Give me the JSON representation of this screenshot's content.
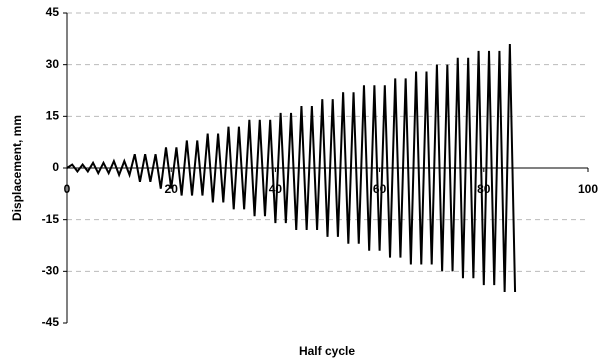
{
  "chart_data": {
    "type": "line",
    "x_label": "Half cycle",
    "y_label": "Displacement, mm",
    "x": [
      0,
      1,
      2,
      3,
      4,
      5,
      6,
      7,
      8,
      9,
      10,
      11,
      12,
      13,
      14,
      15,
      16,
      17,
      18,
      19,
      20,
      21,
      22,
      23,
      24,
      25,
      26,
      27,
      28,
      29,
      30,
      31,
      32,
      33,
      34,
      35,
      36,
      37,
      38,
      39,
      40,
      41,
      42,
      43,
      44,
      45,
      46,
      47,
      48,
      49,
      50,
      51,
      52,
      53,
      54,
      55,
      56,
      57,
      58,
      59,
      60,
      61,
      62,
      63,
      64,
      65,
      66,
      67,
      68,
      69,
      70,
      71,
      72,
      73,
      74,
      75,
      76,
      77,
      78,
      79,
      80,
      81,
      82,
      83,
      84,
      85,
      86
    ],
    "values": [
      0,
      1,
      -1,
      1,
      -1,
      1.5,
      -1.5,
      1.5,
      -1.5,
      2,
      -2,
      2,
      -2,
      4,
      -4,
      4,
      -4,
      4,
      -6,
      6,
      -6,
      6,
      -8,
      8,
      -8,
      8,
      -8,
      10,
      -10,
      10,
      -10,
      12,
      -12,
      12,
      -12,
      14,
      -14,
      14,
      -14,
      14,
      -16,
      16,
      -16,
      16,
      -18,
      18,
      -18,
      18,
      -18,
      20,
      -20,
      20,
      -20,
      22,
      -22,
      22,
      -22,
      24,
      -24,
      24,
      -24,
      24,
      -26,
      26,
      -26,
      26,
      -28,
      28,
      -28,
      28,
      -28,
      30,
      -30,
      30,
      -30,
      32,
      -32,
      32,
      -32,
      34,
      -34,
      34,
      -34,
      34,
      -36,
      36,
      -36
    ],
    "color": "#000000",
    "xlim": [
      0,
      100
    ],
    "xticks": [
      0,
      20,
      40,
      60,
      80,
      100
    ],
    "ylim": [
      -45,
      45
    ],
    "yticks": [
      -45,
      -30,
      -15,
      0,
      15,
      30,
      45
    ],
    "grid": true
  }
}
